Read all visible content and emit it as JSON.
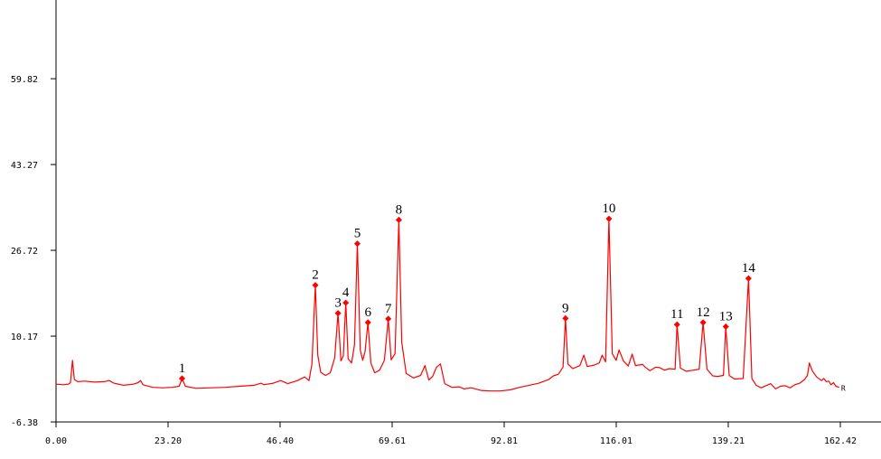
{
  "chart_data": {
    "type": "line",
    "title": "",
    "xlabel": "",
    "ylabel": "",
    "xlim": [
      0,
      162.42
    ],
    "ylim": [
      -6.38,
      75.0
    ],
    "x_ticks": [
      "0.00",
      "23.20",
      "46.40",
      "69.61",
      "92.81",
      "116.01",
      "139.21",
      "162.42"
    ],
    "x_tick_values": [
      0,
      23.2,
      46.4,
      69.61,
      92.81,
      116.01,
      139.21,
      162.42
    ],
    "y_ticks": [
      "-6.38",
      "10.17",
      "26.72",
      "43.27",
      "59.82"
    ],
    "y_tick_values": [
      -6.38,
      10.17,
      26.72,
      43.27,
      59.82
    ],
    "grid": false,
    "line_color": "#ff0000",
    "marker_color": "#ff0000",
    "end_label": "R",
    "series": [
      {
        "points": [
          [
            0,
            0.9
          ],
          [
            1.5,
            0.8
          ],
          [
            2.5,
            0.9
          ],
          [
            3,
            1.2
          ],
          [
            3.4,
            5.5
          ],
          [
            3.8,
            1.8
          ],
          [
            4.5,
            1.4
          ],
          [
            6,
            1.5
          ],
          [
            8,
            1.3
          ],
          [
            10,
            1.4
          ],
          [
            11,
            1.6
          ],
          [
            12,
            1.1
          ],
          [
            14,
            0.7
          ],
          [
            16,
            0.9
          ],
          [
            17,
            1.2
          ],
          [
            17.5,
            1.6
          ],
          [
            18,
            0.8
          ],
          [
            20,
            0.3
          ],
          [
            22,
            0.2
          ],
          [
            24,
            0.3
          ],
          [
            25.5,
            0.5
          ],
          [
            26.1,
            2.0
          ],
          [
            26.8,
            0.5
          ],
          [
            29,
            0.1
          ],
          [
            32,
            0.2
          ],
          [
            35,
            0.3
          ],
          [
            38,
            0.5
          ],
          [
            41,
            0.7
          ],
          [
            42.5,
            1.1
          ],
          [
            43,
            0.8
          ],
          [
            45,
            1.1
          ],
          [
            46.5,
            1.6
          ],
          [
            48,
            1.0
          ],
          [
            50,
            1.6
          ],
          [
            51.5,
            2.3
          ],
          [
            52.4,
            1.6
          ],
          [
            53,
            4.8
          ],
          [
            53.7,
            20.0
          ],
          [
            54.2,
            6.5
          ],
          [
            54.8,
            3.2
          ],
          [
            55.8,
            2.6
          ],
          [
            56.8,
            3.1
          ],
          [
            57.7,
            6.0
          ],
          [
            58.4,
            14.6
          ],
          [
            59.0,
            5.4
          ],
          [
            59.5,
            6.4
          ],
          [
            60.0,
            16.6
          ],
          [
            60.5,
            5.8
          ],
          [
            61.2,
            5.0
          ],
          [
            61.8,
            8.5
          ],
          [
            62.4,
            28.0
          ],
          [
            63.0,
            7.5
          ],
          [
            63.5,
            5.5
          ],
          [
            64.0,
            7.2
          ],
          [
            64.6,
            12.8
          ],
          [
            65.2,
            5.0
          ],
          [
            66,
            3.1
          ],
          [
            67,
            3.6
          ],
          [
            68.0,
            5.5
          ],
          [
            68.8,
            13.5
          ],
          [
            69.4,
            5.6
          ],
          [
            70.2,
            6.8
          ],
          [
            71.0,
            32.6
          ],
          [
            71.6,
            9.0
          ],
          [
            72.5,
            3.0
          ],
          [
            74,
            2.1
          ],
          [
            75.5,
            2.6
          ],
          [
            76.4,
            4.5
          ],
          [
            77.2,
            1.7
          ],
          [
            78,
            2.4
          ],
          [
            78.8,
            4.2
          ],
          [
            79.6,
            4.8
          ],
          [
            80.5,
            1.0
          ],
          [
            82,
            0.3
          ],
          [
            83.5,
            0.4
          ],
          [
            84.5,
            0.0
          ],
          [
            86,
            0.2
          ],
          [
            88,
            -0.3
          ],
          [
            90,
            -0.4
          ],
          [
            92,
            -0.4
          ],
          [
            94,
            -0.2
          ],
          [
            96,
            0.3
          ],
          [
            98,
            0.7
          ],
          [
            100,
            1.1
          ],
          [
            102,
            1.8
          ],
          [
            103,
            2.5
          ],
          [
            104,
            2.8
          ],
          [
            105,
            4.2
          ],
          [
            105.5,
            13.6
          ],
          [
            106,
            4.8
          ],
          [
            107,
            3.9
          ],
          [
            108.5,
            4.5
          ],
          [
            109.3,
            6.5
          ],
          [
            110,
            4.3
          ],
          [
            111.5,
            4.6
          ],
          [
            112.5,
            5.0
          ],
          [
            113.1,
            6.5
          ],
          [
            113.8,
            5.2
          ],
          [
            114.5,
            32.8
          ],
          [
            115.2,
            6.8
          ],
          [
            116.0,
            5.5
          ],
          [
            116.6,
            7.5
          ],
          [
            117.5,
            5.4
          ],
          [
            118.5,
            4.4
          ],
          [
            119.3,
            6.7
          ],
          [
            120,
            4.5
          ],
          [
            121.5,
            4.7
          ],
          [
            122,
            4.2
          ],
          [
            123,
            3.5
          ],
          [
            124.2,
            4.2
          ],
          [
            125,
            4.1
          ],
          [
            126,
            3.6
          ],
          [
            127,
            3.9
          ],
          [
            128.2,
            3.8
          ],
          [
            128.6,
            12.4
          ],
          [
            129.3,
            4.0
          ],
          [
            130.5,
            3.4
          ],
          [
            132,
            3.6
          ],
          [
            133.2,
            3.8
          ],
          [
            134.0,
            12.8
          ],
          [
            134.8,
            3.8
          ],
          [
            136,
            2.5
          ],
          [
            137,
            2.4
          ],
          [
            138.2,
            2.6
          ],
          [
            138.7,
            12.0
          ],
          [
            139.4,
            2.6
          ],
          [
            140.5,
            1.9
          ],
          [
            142.3,
            2.0
          ],
          [
            143.4,
            21.3
          ],
          [
            144.1,
            2.0
          ],
          [
            145,
            0.7
          ],
          [
            146,
            0.2
          ],
          [
            147,
            0.6
          ],
          [
            148,
            1.0
          ],
          [
            149,
            0.0
          ],
          [
            150,
            0.5
          ],
          [
            151,
            0.6
          ],
          [
            152,
            0.2
          ],
          [
            153,
            0.8
          ],
          [
            154,
            1.1
          ],
          [
            155,
            1.8
          ],
          [
            155.6,
            2.6
          ],
          [
            156,
            5.0
          ],
          [
            156.6,
            3.5
          ],
          [
            157.5,
            2.3
          ],
          [
            158.5,
            1.6
          ],
          [
            159,
            2.0
          ],
          [
            159.5,
            1.4
          ],
          [
            160,
            1.5
          ],
          [
            160.5,
            0.8
          ],
          [
            161,
            1.2
          ],
          [
            161.5,
            0.5
          ],
          [
            162.2,
            0.3
          ]
        ]
      }
    ],
    "peaks": [
      {
        "label": "1",
        "x": 26.1,
        "y": 2.0
      },
      {
        "label": "2",
        "x": 53.7,
        "y": 20.0
      },
      {
        "label": "3",
        "x": 58.4,
        "y": 14.6
      },
      {
        "label": "4",
        "x": 60.0,
        "y": 16.6
      },
      {
        "label": "5",
        "x": 62.4,
        "y": 28.0
      },
      {
        "label": "6",
        "x": 64.6,
        "y": 12.8
      },
      {
        "label": "7",
        "x": 68.8,
        "y": 13.5
      },
      {
        "label": "8",
        "x": 71.0,
        "y": 32.6
      },
      {
        "label": "9",
        "x": 105.5,
        "y": 13.6
      },
      {
        "label": "10",
        "x": 114.5,
        "y": 32.8
      },
      {
        "label": "11",
        "x": 128.6,
        "y": 12.4
      },
      {
        "label": "12",
        "x": 134.0,
        "y": 12.8
      },
      {
        "label": "13",
        "x": 138.7,
        "y": 12.0
      },
      {
        "label": "14",
        "x": 143.4,
        "y": 21.3
      }
    ]
  }
}
